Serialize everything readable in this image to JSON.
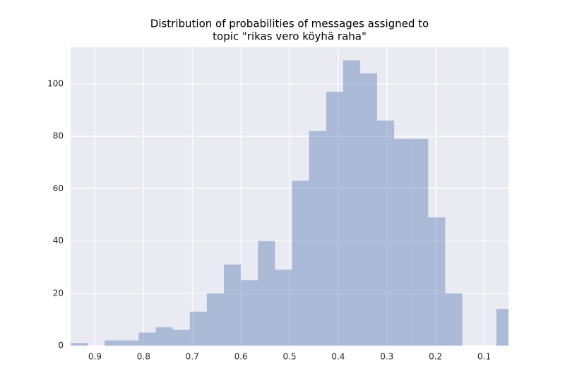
{
  "chart_data": {
    "type": "histogram",
    "title": [
      "Distribution of probabilities of messages assigned to",
      "topic \"rikas vero köyhä raha\""
    ],
    "bins": [
      0.95,
      0.915,
      0.88,
      0.845,
      0.81,
      0.775,
      0.74,
      0.705,
      0.67,
      0.635,
      0.6,
      0.565,
      0.53,
      0.495,
      0.46,
      0.425,
      0.39,
      0.355,
      0.32,
      0.285,
      0.25,
      0.215,
      0.18,
      0.145,
      0.11,
      0.075,
      0.04
    ],
    "values": [
      1,
      0,
      2,
      2,
      5,
      7,
      6,
      13,
      20,
      31,
      25,
      40,
      29,
      63,
      82,
      97,
      109,
      104,
      86,
      79,
      79,
      49,
      20,
      0,
      0,
      14
    ],
    "color": "#4c72b0",
    "opacity": 0.4,
    "background": "#eaeaf2",
    "grid": true,
    "xlim": [
      0.95,
      0.05
    ],
    "xticks": [
      0.9,
      0.8,
      0.7,
      0.6,
      0.5,
      0.4,
      0.3,
      0.2,
      0.1
    ],
    "ylim": [
      0,
      114
    ],
    "yticks": [
      0,
      20,
      40,
      60,
      80,
      100
    ]
  }
}
